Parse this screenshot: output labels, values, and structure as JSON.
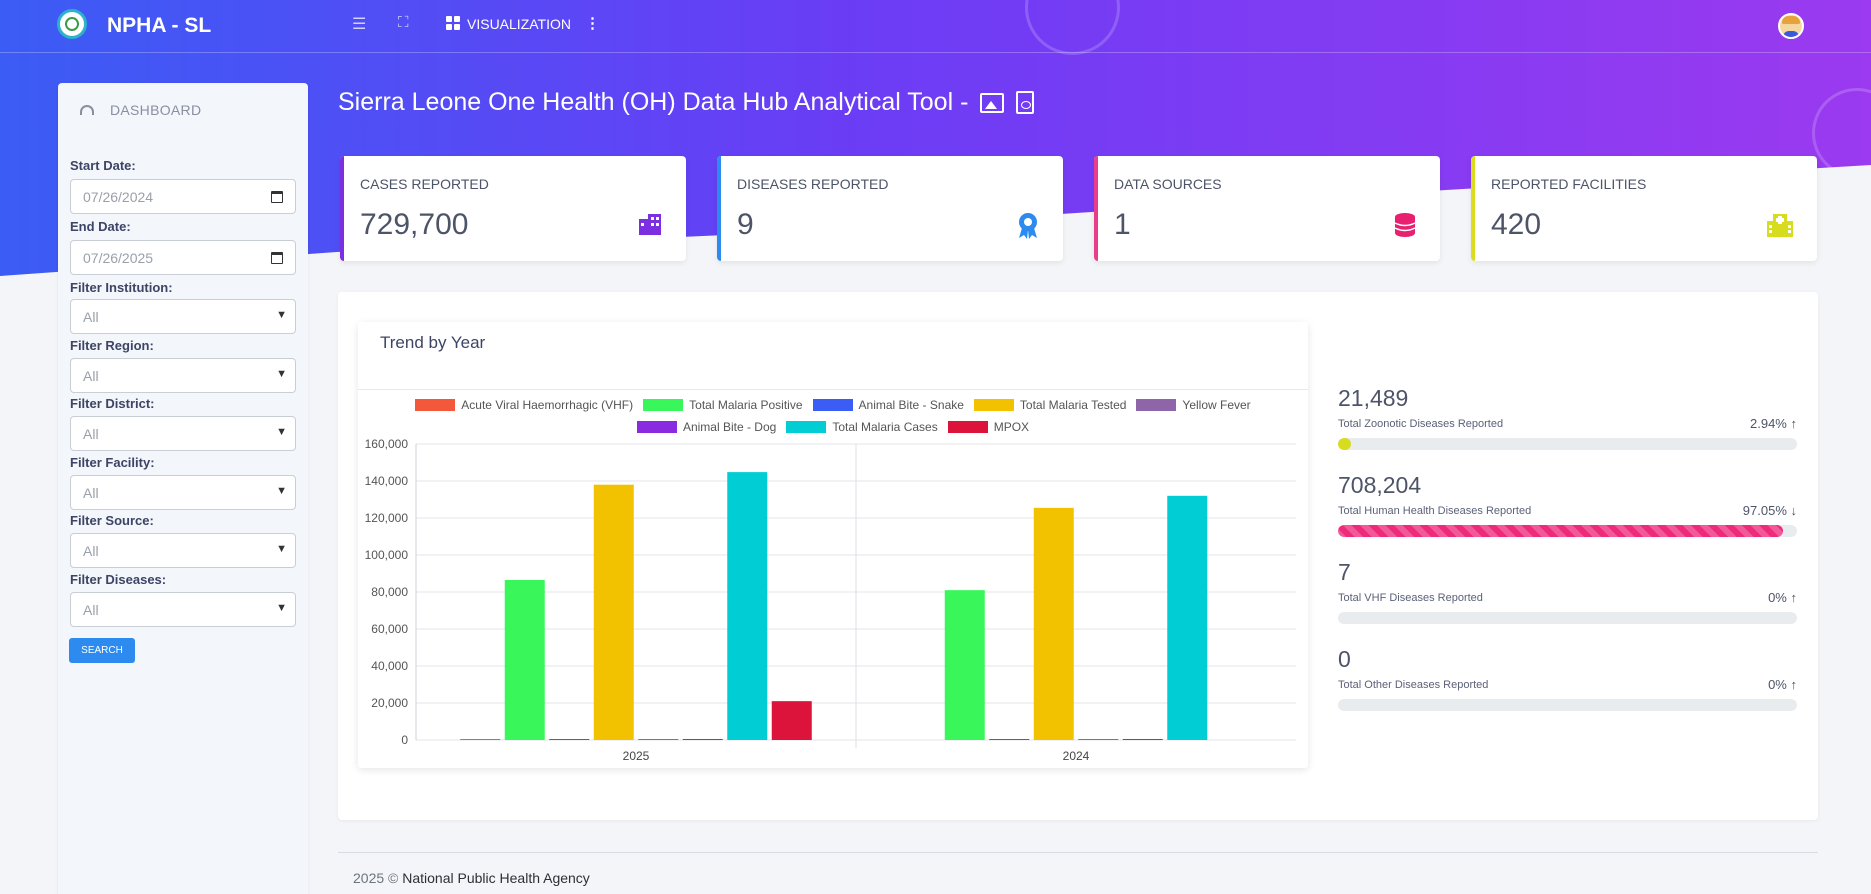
{
  "app": {
    "brand": "NPHA - SL",
    "nav_visualization": "VISUALIZATION"
  },
  "sidebar": {
    "dashboard_label": "DASHBOARD",
    "start_date_label": "Start Date:",
    "start_date_value": "07/26/2024",
    "end_date_label": "End Date:",
    "end_date_value": "07/26/2025",
    "filters": [
      {
        "label": "Filter Institution:",
        "value": "All"
      },
      {
        "label": "Filter Region:",
        "value": "All"
      },
      {
        "label": "Filter District:",
        "value": "All"
      },
      {
        "label": "Filter Facility:",
        "value": "All"
      },
      {
        "label": "Filter Source:",
        "value": "All"
      },
      {
        "label": "Filter Diseases:",
        "value": "All"
      }
    ],
    "search_label": "SEARCH"
  },
  "page_title": "Sierra Leone One Health (OH) Data Hub Analytical Tool -",
  "stats": [
    {
      "label": "CASES REPORTED",
      "value": "729,700",
      "accent": "#7b2fe0",
      "icon": "building-icon"
    },
    {
      "label": "DISEASES REPORTED",
      "value": "9",
      "accent": "#2d8bf0",
      "icon": "award-icon"
    },
    {
      "label": "DATA SOURCES",
      "value": "1",
      "accent": "#e83e8c",
      "icon": "database-icon"
    },
    {
      "label": "REPORTED FACILITIES",
      "value": "420",
      "accent": "#dcdc1f",
      "icon": "hospital-icon"
    }
  ],
  "chart_title": "Trend by Year",
  "chart_data": {
    "type": "bar",
    "title": "Trend by Year",
    "categories": [
      "2025",
      "2024"
    ],
    "ylim": [
      0,
      160000
    ],
    "yticks": [
      "0",
      "20,000",
      "40,000",
      "60,000",
      "80,000",
      "100,000",
      "120,000",
      "140,000",
      "160,000"
    ],
    "grid": true,
    "legend_position": "top",
    "series": [
      {
        "name": "Acute Viral Haemorrhagic (VHF)",
        "color": "#f4583a",
        "values": [
          7,
          0
        ]
      },
      {
        "name": "Total Malaria Positive",
        "color": "#39f75a",
        "values": [
          86500,
          81000
        ]
      },
      {
        "name": "Animal Bite - Snake",
        "color": "#3b5cf5",
        "values": [
          300,
          300
        ]
      },
      {
        "name": "Total Malaria Tested",
        "color": "#f2c200",
        "values": [
          138000,
          125500
        ]
      },
      {
        "name": "Yellow Fever",
        "color": "#8e65a8",
        "values": [
          100,
          100
        ]
      },
      {
        "name": "Animal Bite - Dog",
        "color": "#8a2be2",
        "values": [
          300,
          300
        ]
      },
      {
        "name": "Total Malaria Cases",
        "color": "#00cdd4",
        "values": [
          144800,
          132000
        ]
      },
      {
        "name": "MPOX",
        "color": "#dc143c",
        "values": [
          21000,
          0
        ]
      }
    ]
  },
  "metrics": [
    {
      "value": "21,489",
      "label": "Total Zoonotic Diseases Reported",
      "pct": "2.94%",
      "fill": 0.0294,
      "color": "#d8dc1f",
      "arrow": "↑"
    },
    {
      "value": "708,204",
      "label": "Total Human Health Diseases Reported",
      "pct": "97.05%",
      "fill": 0.9705,
      "color": "#ee2a7b",
      "arrow": "↓"
    },
    {
      "value": "7",
      "label": "Total VHF Diseases Reported",
      "pct": "0%",
      "fill": 0,
      "color": "#ee2a7b",
      "arrow": "↑"
    },
    {
      "value": "0",
      "label": "Total Other Diseases Reported",
      "pct": "0%",
      "fill": 0,
      "color": "#ee2a7b",
      "arrow": "↑"
    }
  ],
  "footer": {
    "year": "2025 ©",
    "org": "National Public Health Agency"
  }
}
